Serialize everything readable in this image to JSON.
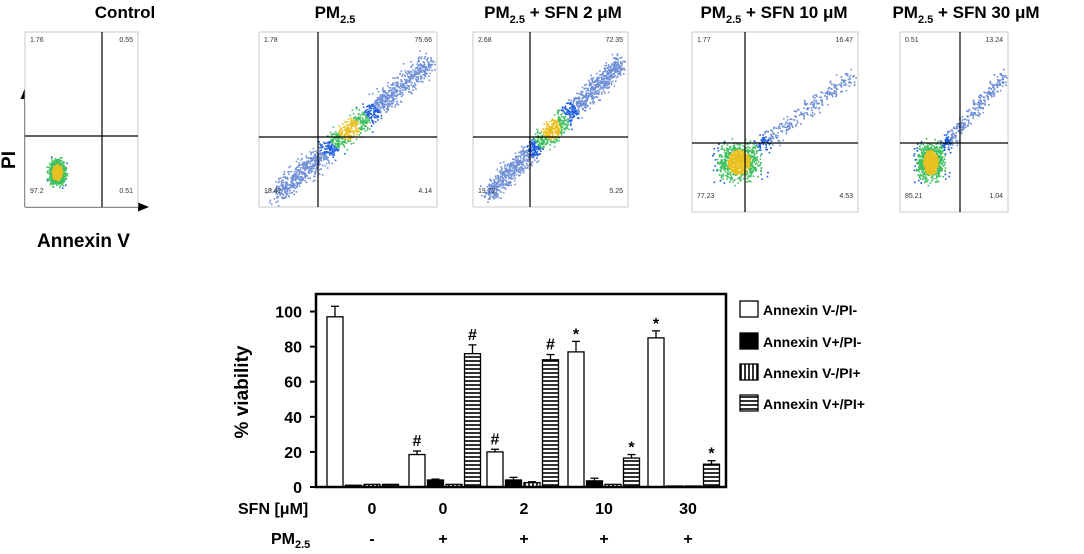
{
  "flow_panels": [
    {
      "title": "Control",
      "title_suffix": "",
      "quadrants": {
        "ul": "1.76",
        "ur": "0.55",
        "ll": "97.2",
        "lr": "0.51"
      }
    },
    {
      "title": "PM",
      "title_suffix": "",
      "quadrants": {
        "ul": "1.78",
        "ur": "75.66",
        "ll": "18.42",
        "lr": "4.14"
      }
    },
    {
      "title": "PM",
      "title_suffix": " + SFN 2 μM",
      "quadrants": {
        "ul": "2.68",
        "ur": "72.35",
        "ll": "19.72",
        "lr": "5.25"
      }
    },
    {
      "title": "PM",
      "title_suffix": " + SFN 10 μM",
      "quadrants": {
        "ul": "1.77",
        "ur": "16.47",
        "ll": "77.23",
        "lr": "4.53"
      }
    },
    {
      "title": "PM",
      "title_suffix": " + SFN 30 μM",
      "quadrants": {
        "ul": "0.51",
        "ur": "13.24",
        "ll": "85.21",
        "lr": "1.04"
      }
    }
  ],
  "pm_subscript": "2.5",
  "flow_axes": {
    "y_label": "PI",
    "x_label": "Annexin V"
  },
  "chart_data": {
    "type": "bar",
    "ylabel": "% viability",
    "ylim": [
      0,
      110
    ],
    "yticks": [
      "0",
      "20",
      "40",
      "60",
      "80",
      "100"
    ],
    "groups": [
      "0",
      "0",
      "2",
      "10",
      "30"
    ],
    "series": [
      {
        "name": "Annexin V-/PI-",
        "pattern": "white",
        "values": [
          97,
          18.5,
          20,
          77,
          85
        ],
        "errors": [
          6,
          2,
          1.5,
          6,
          4
        ],
        "marks": [
          "",
          "#",
          "#",
          "*",
          "*"
        ]
      },
      {
        "name": "Annexin V+/PI-",
        "pattern": "black",
        "values": [
          1,
          4,
          4,
          3.5,
          0.5
        ],
        "errors": [
          0.3,
          0.5,
          1.5,
          1.5,
          0.3
        ],
        "marks": [
          "",
          "",
          "",
          "",
          ""
        ]
      },
      {
        "name": "Annexin V-/PI+",
        "pattern": "vertical",
        "values": [
          1.5,
          1.5,
          2.5,
          1.5,
          0.5
        ],
        "errors": [
          0.3,
          0.3,
          0.5,
          0.3,
          0.2
        ],
        "marks": [
          "",
          "",
          "",
          "",
          ""
        ]
      },
      {
        "name": "Annexin V+/PI+",
        "pattern": "horizontal",
        "values": [
          1.5,
          76,
          72.5,
          16.5,
          13
        ],
        "errors": [
          0.3,
          5,
          3,
          2,
          2
        ],
        "marks": [
          "",
          "#",
          "#",
          "*",
          "*"
        ]
      }
    ]
  },
  "rows": {
    "sfn_label": "SFN [μM]",
    "sfn_values": [
      "0",
      "0",
      "2",
      "10",
      "30"
    ],
    "pm_label": "PM",
    "pm_values": [
      "-",
      "+",
      "+",
      "+",
      "+"
    ]
  }
}
